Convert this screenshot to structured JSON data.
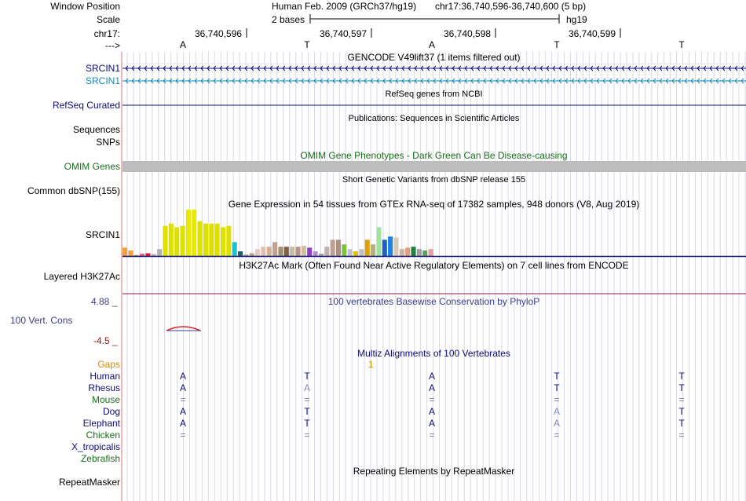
{
  "header": {
    "window_position_label": "Window Position",
    "scale_label": "Scale",
    "chrom_label": "chr17:",
    "strand_label": "--->",
    "assembly": "Human Feb. 2009 (GRCh37/hg19)",
    "position": "chr17:36,740,596-36,740,600 (5 bp)",
    "scale_text": "2 bases",
    "db": "hg19",
    "coords": [
      "36,740,596",
      "36,740,597",
      "36,740,598",
      "36,740,599"
    ]
  },
  "sequence": [
    "A",
    "T",
    "A",
    "T",
    "T"
  ],
  "tracks": {
    "gencode": {
      "title": "GENCODE V49lift37 (1 items filtered out)",
      "items": [
        "SRCIN1",
        "SRCIN1"
      ],
      "colors": [
        "#0c0c78",
        "#1a88b8"
      ]
    },
    "refseq": {
      "label": "RefSeq Curated",
      "title": "RefSeq genes from NCBI",
      "color": "#0c0c78"
    },
    "publications": {
      "label": "Sequences",
      "title": "Publications: Sequences in Scientific Articles"
    },
    "snps": {
      "label": "SNPs"
    },
    "omim": {
      "label": "OMIM Genes",
      "title": "OMIM Gene Phenotypes - Dark Green Can Be Disease-causing",
      "color": "#1a6e1a"
    },
    "dbsnp": {
      "label": "Common dbSNP(155)",
      "title": "Short Genetic Variants from dbSNP release 155"
    },
    "gtex": {
      "title": "Gene Expression in 54 tissues from GTEx RNA-seq of 17382 samples, 948 donors (V8, Aug 2019)",
      "gene": "SRCIN1",
      "values": [
        0.18,
        0.12,
        0.02,
        0.05,
        0.06,
        0.04,
        0.15,
        0.65,
        0.7,
        0.62,
        0.65,
        1.0,
        1.0,
        0.75,
        0.7,
        0.7,
        0.7,
        0.62,
        0.65,
        0.3,
        0.1,
        0.03,
        0.06,
        0.15,
        0.2,
        0.2,
        0.3,
        0.2,
        0.2,
        0.2,
        0.2,
        0.22,
        0.18,
        0.1,
        0.05,
        0.2,
        0.35,
        0.35,
        0.25,
        0.15,
        0.1,
        0.15,
        0.35,
        0.25,
        0.62,
        0.35,
        0.42,
        0.4,
        0.15,
        0.18,
        0.2,
        0.15,
        0.12,
        0.15
      ],
      "colors": [
        "#f0a040",
        "#f0a040",
        "#c88840",
        "#e06080",
        "#e01c40",
        "#c8a0c0",
        "#b0b0b0",
        "#e0e000",
        "#e0e000",
        "#e0e000",
        "#e0e000",
        "#e8e800",
        "#e8e800",
        "#e0e000",
        "#e0e000",
        "#e0e000",
        "#e0e000",
        "#e0e000",
        "#e0e000",
        "#20c0d0",
        "#206060",
        "#a0a0a0",
        "#c0a080",
        "#e8c8c0",
        "#e0c0b0",
        "#d0b090",
        "#c0a090",
        "#a09070",
        "#806040",
        "#c0c0a0",
        "#c09080",
        "#d0c0a0",
        "#9040c0",
        "#b090d0",
        "#a0a0a0",
        "#c0b0b0",
        "#c0a090",
        "#b09080",
        "#80c040",
        "#c0c0d0",
        "#e0c000",
        "#c0c0c0",
        "#e0a000",
        "#b0b080",
        "#a0e0a0",
        "#2060c0",
        "#2080e0",
        "#d8c8b8",
        "#d0b0a0",
        "#e0a080",
        "#208040",
        "#a0a0a0",
        "#60a060",
        "#e0a0a0"
      ]
    },
    "h3k27ac": {
      "label": "Layered H3K27Ac",
      "title": "H3K27Ac Mark (Often Found Near Active Regulatory Elements) on 7 cell lines from ENCODE"
    },
    "phylop": {
      "label": "100 Vert. Cons",
      "title": "100 vertebrates Basewise Conservation by PhyloP",
      "max": "4.88 _",
      "min": "-4.5 _"
    },
    "multiz": {
      "title": "Multiz Alignments of 100 Vertebrates",
      "gaps_label": "Gaps",
      "gap_count": "1",
      "species": [
        {
          "name": "Human",
          "color": "#0c0c78",
          "bases": [
            "A",
            "T",
            "A",
            "T",
            "T"
          ]
        },
        {
          "name": "Rhesus",
          "color": "#0c0c78",
          "bases": [
            "A",
            "A",
            "A",
            "T",
            "T"
          ]
        },
        {
          "name": "Mouse",
          "color": "#1a6e1a",
          "bases": [
            "=",
            "=",
            "=",
            "=",
            "="
          ]
        },
        {
          "name": "Dog",
          "color": "#0c0c78",
          "bases": [
            "A",
            "T",
            "A",
            "A",
            "T"
          ]
        },
        {
          "name": "Elephant",
          "color": "#0c0c78",
          "bases": [
            "A",
            "T",
            "A",
            "A",
            "T"
          ]
        },
        {
          "name": "Chicken",
          "color": "#1a6e1a",
          "bases": [
            "=",
            "=",
            "=",
            "=",
            "="
          ]
        },
        {
          "name": "X_tropicalis",
          "color": "#0c0c78",
          "bases": [
            "",
            "",
            "",
            "",
            ""
          ]
        },
        {
          "name": "Zebrafish",
          "color": "#1a6e1a",
          "bases": [
            "",
            "",
            "",
            "",
            ""
          ]
        }
      ]
    },
    "repeatmasker": {
      "label": "RepeatMasker",
      "title": "Repeating Elements by RepeatMasker"
    }
  }
}
